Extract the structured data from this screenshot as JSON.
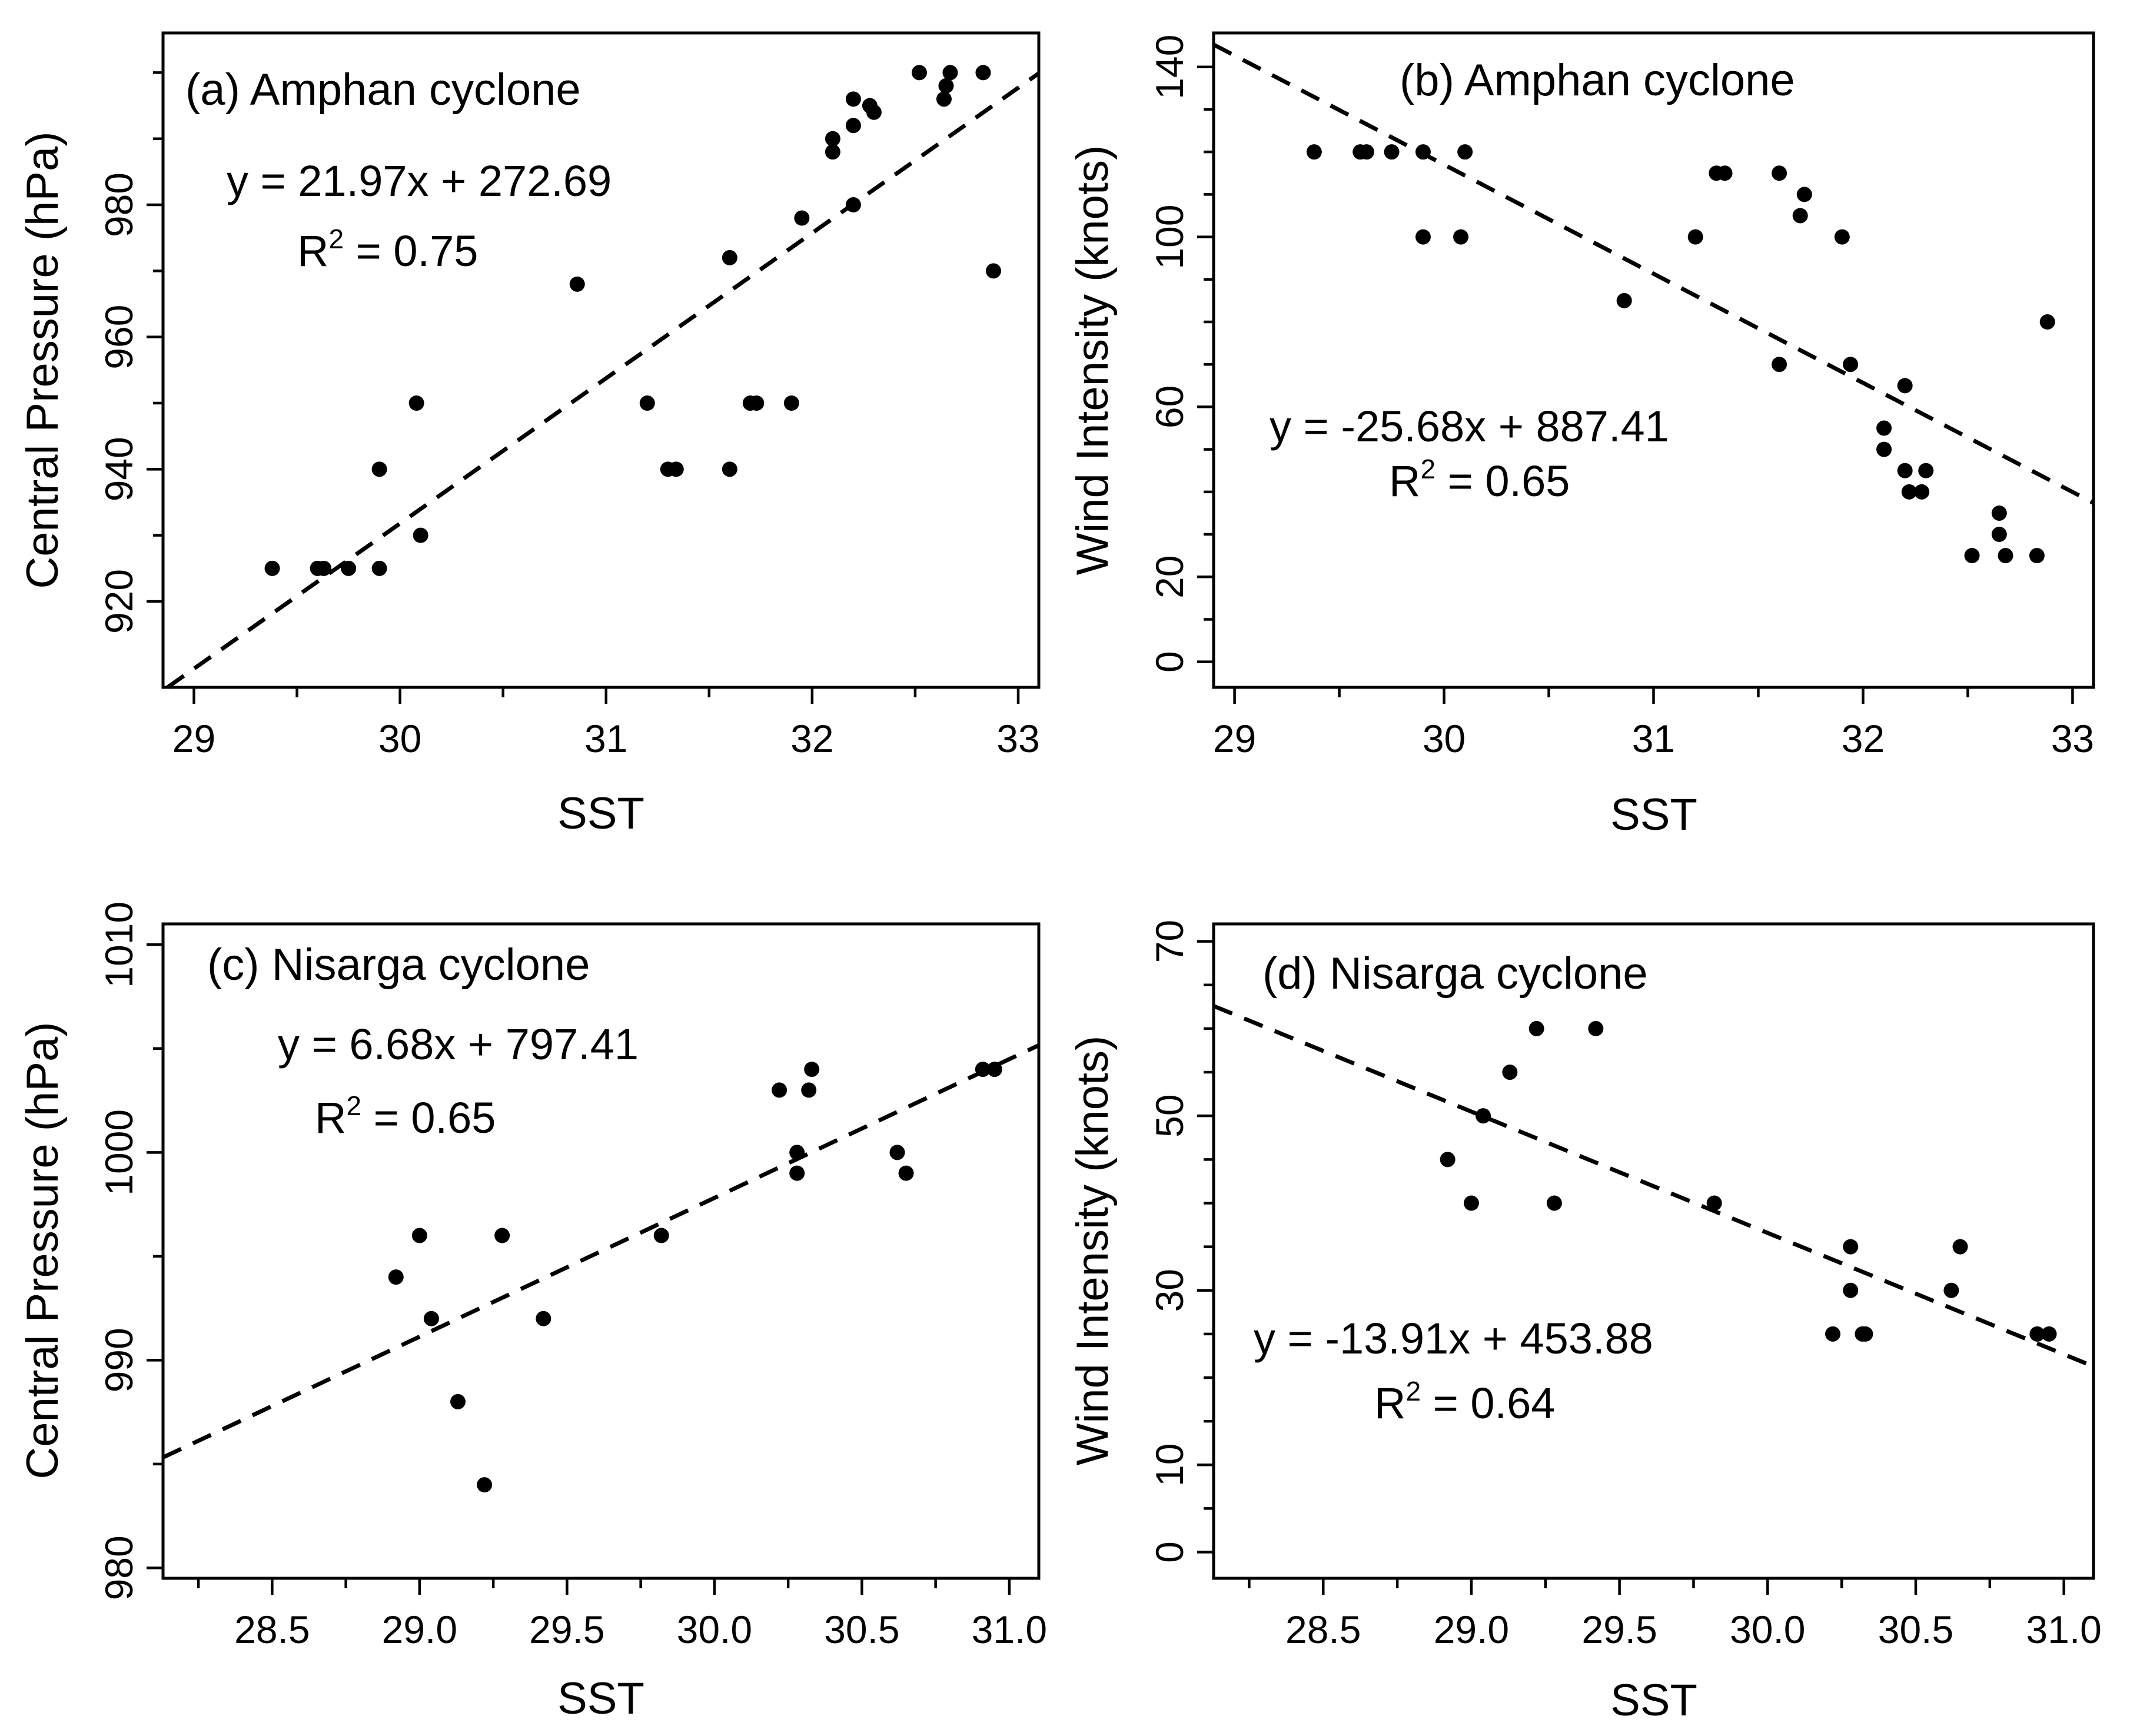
{
  "chart_data": [
    {
      "id": "a",
      "type": "scatter",
      "title": "(a) Amphan cyclone",
      "xlabel": "SST",
      "ylabel": "Central Pressure (hPa)",
      "xlim": [
        28.85,
        33.1
      ],
      "ylim": [
        907,
        1006
      ],
      "xticks_major": [
        29,
        30,
        31,
        32,
        33
      ],
      "xticks_minor": [
        29.5,
        30.5,
        31.5,
        32.5
      ],
      "yticks_major": [
        920,
        940,
        960,
        980
      ],
      "yticks_minor": [
        930,
        950,
        970,
        990,
        1000
      ],
      "equation": "y = 21.97x + 272.69",
      "r2_value": "0.75",
      "r2_prefix": "R",
      "r2_sup": "2",
      "r2_suffix": " = 0.75",
      "fit": {
        "slope": 21.97,
        "intercept": 272.69
      },
      "x": [
        29.38,
        29.6,
        29.63,
        29.75,
        29.9,
        29.9,
        30.08,
        30.1,
        30.86,
        31.2,
        31.3,
        31.34,
        31.6,
        31.6,
        31.7,
        31.73,
        31.9,
        31.95,
        32.1,
        32.1,
        32.2,
        32.2,
        32.2,
        32.28,
        32.3,
        32.52,
        32.64,
        32.65,
        32.67,
        32.83,
        32.88
      ],
      "y": [
        925,
        925,
        925,
        925,
        925,
        940,
        950,
        930,
        968,
        950,
        940,
        940,
        940,
        972,
        950,
        950,
        950,
        978,
        988,
        990,
        980,
        992,
        996,
        995,
        994,
        1000,
        996,
        998,
        1000,
        1000,
        970
      ]
    },
    {
      "id": "b",
      "type": "scatter",
      "title": "(b) Amphan cyclone",
      "xlabel": "SST",
      "ylabel": "Wind Intensity (knots)",
      "xlim": [
        28.9,
        33.1
      ],
      "ylim": [
        -6,
        148
      ],
      "xticks_major": [
        29,
        30,
        31,
        32,
        33
      ],
      "xticks_minor": [
        29.5,
        30.5,
        31.5,
        32.5
      ],
      "yticks_major": [
        0,
        20,
        60,
        100,
        140
      ],
      "yticks_minor": [
        10,
        30,
        40,
        50,
        70,
        80,
        90,
        110,
        120,
        130
      ],
      "equation": "y = -25.68x + 887.41",
      "r2_value": "0.65",
      "r2_prefix": "R",
      "r2_sup": "2",
      "r2_suffix": " = 0.65",
      "fit": {
        "slope": -25.68,
        "intercept": 887.41
      },
      "x": [
        29.38,
        29.6,
        29.63,
        29.75,
        29.9,
        29.9,
        30.08,
        30.1,
        30.86,
        31.2,
        31.3,
        31.34,
        31.6,
        31.6,
        31.7,
        31.72,
        31.9,
        31.94,
        32.1,
        32.1,
        32.2,
        32.2,
        32.22,
        32.28,
        32.3,
        32.52,
        32.65,
        32.65,
        32.68,
        32.83,
        32.88
      ],
      "y": [
        120,
        120,
        120,
        120,
        120,
        100,
        100,
        120,
        85,
        100,
        115,
        115,
        115,
        70,
        105,
        110,
        100,
        70,
        55,
        50,
        65,
        45,
        40,
        40,
        45,
        25,
        35,
        30,
        25,
        25,
        80
      ]
    },
    {
      "id": "c",
      "type": "scatter",
      "title": "(c) Nisarga cyclone",
      "xlabel": "SST",
      "ylabel": "Central Pressure (hPa)",
      "xlim": [
        28.13,
        31.1
      ],
      "ylim": [
        979.5,
        1011
      ],
      "xticks_major": [
        28.5,
        29.0,
        29.5,
        30.0,
        30.5,
        31.0
      ],
      "xticks_minor": [
        28.25,
        28.75,
        29.25,
        29.75,
        30.25,
        30.75
      ],
      "yticks_major": [
        980,
        990,
        1000,
        1010
      ],
      "yticks_minor": [
        985,
        995,
        1005
      ],
      "tick_decimals": 1,
      "equation": "y = 6.68x + 797.41",
      "r2_value": "0.65",
      "r2_prefix": "R",
      "r2_sup": "2",
      "r2_suffix": " = 0.65",
      "fit": {
        "slope": 6.68,
        "intercept": 797.41
      },
      "x": [
        28.92,
        29.0,
        29.04,
        29.13,
        29.22,
        29.28,
        29.42,
        29.82,
        30.22,
        30.28,
        30.28,
        30.32,
        30.33,
        30.62,
        30.65,
        30.91,
        30.95
      ],
      "y": [
        994,
        996,
        992,
        988,
        984,
        996,
        992,
        996,
        1003,
        1000,
        999,
        1003,
        1004,
        1000,
        999,
        1004,
        1004
      ]
    },
    {
      "id": "d",
      "type": "scatter",
      "title": "(d) Nisarga cyclone",
      "xlabel": "SST",
      "ylabel": "Wind Intensity (knots)",
      "xlim": [
        28.13,
        31.1
      ],
      "ylim": [
        -3,
        72
      ],
      "xticks_major": [
        28.5,
        29.0,
        29.5,
        30.0,
        30.5,
        31.0
      ],
      "xticks_minor": [
        28.25,
        28.75,
        29.25,
        29.75,
        30.25,
        30.75
      ],
      "yticks_major": [
        0,
        10,
        30,
        50,
        70
      ],
      "yticks_minor": [
        5,
        15,
        20,
        25,
        35,
        40,
        45,
        55,
        60,
        65
      ],
      "tick_decimals": 1,
      "equation": "y = -13.91x + 453.88",
      "r2_value": "0.64",
      "r2_prefix": "R",
      "r2_sup": "2",
      "r2_suffix": " = 0.64",
      "fit": {
        "slope": -13.91,
        "intercept": 453.88
      },
      "x": [
        28.92,
        29.0,
        29.04,
        29.13,
        29.22,
        29.28,
        29.42,
        29.82,
        30.22,
        30.28,
        30.28,
        30.32,
        30.33,
        30.62,
        30.65,
        30.91,
        30.95
      ],
      "y": [
        45,
        40,
        50,
        55,
        60,
        40,
        60,
        40,
        25,
        35,
        30,
        25,
        25,
        30,
        35,
        25,
        25
      ]
    }
  ]
}
